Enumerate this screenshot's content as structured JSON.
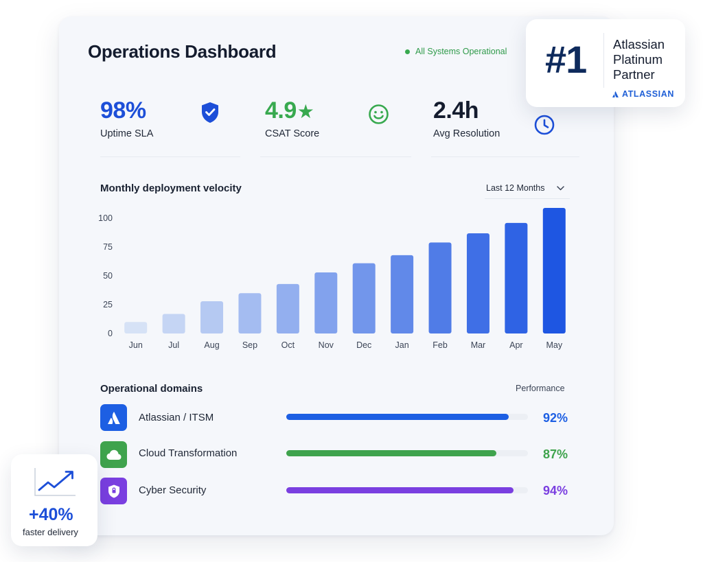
{
  "header": {
    "title": "Operations Dashboard",
    "status_text": "All Systems Operational"
  },
  "colors": {
    "blue": "#1d4fd8",
    "green": "#38a94f",
    "purple": "#7a3fe0",
    "navy": "#0e2a5c"
  },
  "kpis": [
    {
      "value": "98%",
      "label": "Uptime SLA",
      "icon": "shield-check-icon"
    },
    {
      "value": "4.9",
      "suffix": "★",
      "label": "CSAT Score",
      "icon": "smiley-icon"
    },
    {
      "value": "2.4h",
      "label": "Avg Resolution",
      "icon": "clock-icon"
    }
  ],
  "chart_section": {
    "title": "Monthly deployment velocity",
    "range_selected": "Last 12 Months"
  },
  "chart_data": {
    "type": "bar",
    "categories": [
      "Jun",
      "Jul",
      "Aug",
      "Sep",
      "Oct",
      "Nov",
      "Dec",
      "Jan",
      "Feb",
      "Mar",
      "Apr",
      "May"
    ],
    "values": [
      10,
      17,
      28,
      35,
      43,
      53,
      61,
      68,
      79,
      87,
      96,
      109
    ],
    "yticks": [
      0,
      25,
      50,
      75,
      100
    ],
    "ylim": [
      0,
      112
    ],
    "grid": false,
    "legend": "none"
  },
  "domains": {
    "title": "Operational domains",
    "performance_label": "Performance",
    "rows": [
      {
        "label": "Atlassian / ITSM",
        "percent": 92,
        "percent_text": "92%",
        "color": "#1d5fe3",
        "icon": "atlassian-logo-icon"
      },
      {
        "label": "Cloud Transformation",
        "percent": 87,
        "percent_text": "87%",
        "color": "#3fa34d",
        "icon": "cloud-icon"
      },
      {
        "label": "Cyber Security",
        "percent": 94,
        "percent_text": "94%",
        "color": "#7a3fe0",
        "icon": "shield-icon"
      }
    ]
  },
  "badge": {
    "rank": "#1",
    "text_line1": "Atlassian",
    "text_line2": "Platinum",
    "text_line3": "Partner",
    "brand": "ATLASSIAN"
  },
  "stat_card": {
    "value": "+40%",
    "label": "faster delivery",
    "icon": "trend-up-icon"
  }
}
